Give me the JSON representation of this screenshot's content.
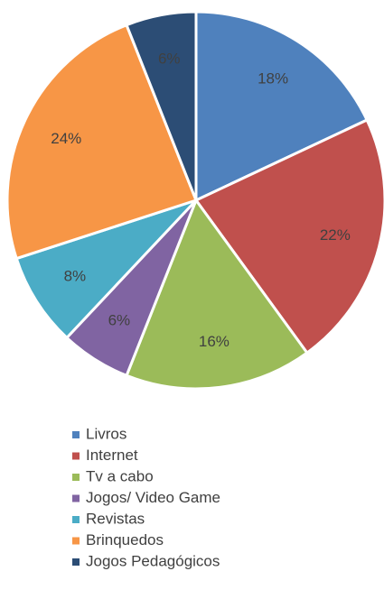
{
  "chart_data": {
    "type": "pie",
    "categories": [
      "Livros",
      "Internet",
      "Tv a cabo",
      "Jogos/ Video Game",
      "Revistas",
      "Brinquedos",
      "Jogos Pedagógicos"
    ],
    "values": [
      18,
      22,
      16,
      6,
      8,
      24,
      6
    ],
    "value_labels": [
      "18%",
      "22%",
      "16%",
      "6%",
      "8%",
      "24%",
      "6%"
    ],
    "colors": [
      "#4f81bd",
      "#c0504d",
      "#9bbb59",
      "#8064a2",
      "#4bacc6",
      "#f79646",
      "#2c4d75"
    ]
  }
}
